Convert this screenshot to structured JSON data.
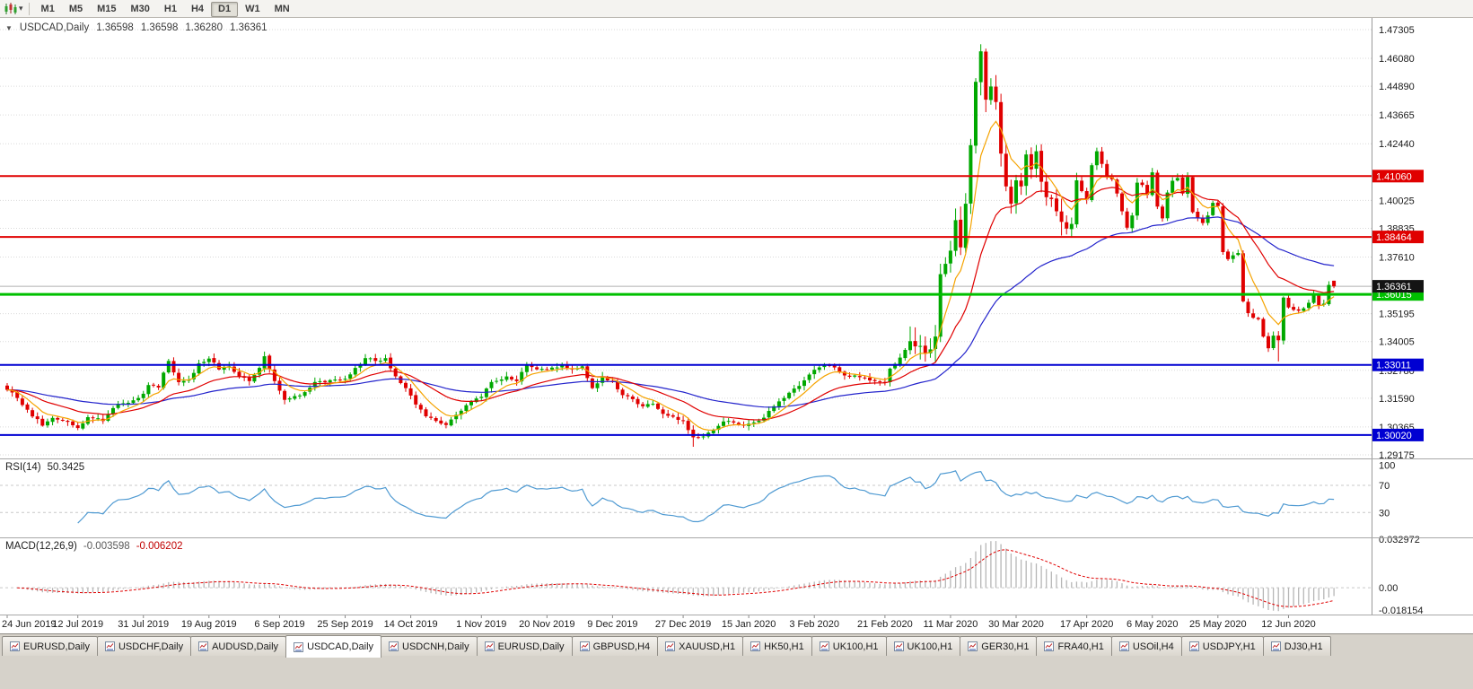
{
  "toolbar": {
    "timeframes": [
      {
        "label": "M1",
        "active": false
      },
      {
        "label": "M5",
        "active": false
      },
      {
        "label": "M15",
        "active": false
      },
      {
        "label": "M30",
        "active": false
      },
      {
        "label": "H1",
        "active": false
      },
      {
        "label": "H4",
        "active": false
      },
      {
        "label": "D1",
        "active": true
      },
      {
        "label": "W1",
        "active": false
      },
      {
        "label": "MN",
        "active": false
      }
    ]
  },
  "chart_header": {
    "collapse_arrow": "▼",
    "symbol": "USDCAD,Daily",
    "open": "1.36598",
    "high": "1.36598",
    "low": "1.36280",
    "close": "1.36361"
  },
  "rsi_panel": {
    "name": "RSI(14)",
    "value": "50.3425",
    "axis_labels": [
      "100",
      "70",
      "30"
    ],
    "levels_dashed": [
      70,
      30
    ],
    "line_color": "#4f9ad2"
  },
  "macd_panel": {
    "name": "MACD(12,26,9)",
    "value_main": "-0.003598",
    "value_signal": "-0.006202",
    "axis_labels": [
      "0.032972",
      "0.00",
      "-0.018154"
    ],
    "scale_max": 0.032972,
    "scale_min": -0.018154,
    "histogram_color": "#b6b6b6",
    "signal_color": "#e00000"
  },
  "chart_data": {
    "type": "candlestick",
    "symbol": "USDCAD",
    "period": "Daily",
    "candle_count": 264,
    "up_color": "#00a800",
    "down_color": "#e00000",
    "y_axis_ticks": [
      "1.47305",
      "1.46080",
      "1.44890",
      "1.43665",
      "1.42440",
      "1.40025",
      "1.38835",
      "1.37610",
      "1.35195",
      "1.34005",
      "1.32780",
      "1.31590",
      "1.30365",
      "1.29175"
    ],
    "x_axis_labels": [
      {
        "i": 0,
        "label": "24 Jun 2019"
      },
      {
        "i": 14,
        "label": "12 Jul 2019"
      },
      {
        "i": 27,
        "label": "31 Jul 2019"
      },
      {
        "i": 40,
        "label": "19 Aug 2019"
      },
      {
        "i": 54,
        "label": "6 Sep 2019"
      },
      {
        "i": 67,
        "label": "25 Sep 2019"
      },
      {
        "i": 80,
        "label": "14 Oct 2019"
      },
      {
        "i": 94,
        "label": "1 Nov 2019"
      },
      {
        "i": 107,
        "label": "20 Nov 2019"
      },
      {
        "i": 120,
        "label": "9 Dec 2019"
      },
      {
        "i": 134,
        "label": "27 Dec 2019"
      },
      {
        "i": 147,
        "label": "15 Jan 2020"
      },
      {
        "i": 160,
        "label": "3 Feb 2020"
      },
      {
        "i": 174,
        "label": "21 Feb 2020"
      },
      {
        "i": 187,
        "label": "11 Mar 2020"
      },
      {
        "i": 200,
        "label": "30 Mar 2020"
      },
      {
        "i": 214,
        "label": "17 Apr 2020"
      },
      {
        "i": 227,
        "label": "6 May 2020"
      },
      {
        "i": 240,
        "label": "25 May 2020"
      },
      {
        "i": 254,
        "label": "12 Jun 2020"
      }
    ],
    "close_anchors": [
      [
        0,
        1.3195
      ],
      [
        2,
        1.316
      ],
      [
        4,
        1.311
      ],
      [
        7,
        1.3042
      ],
      [
        9,
        1.3075
      ],
      [
        12,
        1.3058
      ],
      [
        14,
        1.3032
      ],
      [
        16,
        1.3078
      ],
      [
        19,
        1.3062
      ],
      [
        22,
        1.3135
      ],
      [
        25,
        1.315
      ],
      [
        27,
        1.3178
      ],
      [
        28,
        1.3215
      ],
      [
        30,
        1.3205
      ],
      [
        32,
        1.3318
      ],
      [
        34,
        1.3228
      ],
      [
        36,
        1.3238
      ],
      [
        38,
        1.3308
      ],
      [
        40,
        1.3328
      ],
      [
        42,
        1.3282
      ],
      [
        44,
        1.3295
      ],
      [
        46,
        1.3252
      ],
      [
        48,
        1.3232
      ],
      [
        50,
        1.3288
      ],
      [
        51,
        1.3338
      ],
      [
        53,
        1.3232
      ],
      [
        55,
        1.3152
      ],
      [
        57,
        1.3168
      ],
      [
        59,
        1.3185
      ],
      [
        61,
        1.3228
      ],
      [
        64,
        1.3236
      ],
      [
        67,
        1.3242
      ],
      [
        69,
        1.3288
      ],
      [
        71,
        1.333
      ],
      [
        73,
        1.3318
      ],
      [
        75,
        1.333
      ],
      [
        77,
        1.3252
      ],
      [
        79,
        1.3202
      ],
      [
        81,
        1.3132
      ],
      [
        83,
        1.3082
      ],
      [
        85,
        1.3062
      ],
      [
        87,
        1.3045
      ],
      [
        89,
        1.3088
      ],
      [
        92,
        1.3145
      ],
      [
        94,
        1.3165
      ],
      [
        96,
        1.3228
      ],
      [
        99,
        1.3252
      ],
      [
        101,
        1.3232
      ],
      [
        103,
        1.3302
      ],
      [
        105,
        1.3282
      ],
      [
        107,
        1.3282
      ],
      [
        110,
        1.3298
      ],
      [
        112,
        1.3282
      ],
      [
        114,
        1.3295
      ],
      [
        116,
        1.3202
      ],
      [
        118,
        1.3252
      ],
      [
        120,
        1.3228
      ],
      [
        122,
        1.3172
      ],
      [
        124,
        1.3155
      ],
      [
        126,
        1.3125
      ],
      [
        128,
        1.3135
      ],
      [
        130,
        1.3092
      ],
      [
        132,
        1.308
      ],
      [
        134,
        1.3065
      ],
      [
        136,
        1.2992
      ],
      [
        138,
        1.2996
      ],
      [
        140,
        1.3022
      ],
      [
        142,
        1.306
      ],
      [
        144,
        1.3055
      ],
      [
        146,
        1.3042
      ],
      [
        148,
        1.3056
      ],
      [
        150,
        1.3076
      ],
      [
        152,
        1.3125
      ],
      [
        154,
        1.316
      ],
      [
        156,
        1.32
      ],
      [
        158,
        1.3235
      ],
      [
        160,
        1.328
      ],
      [
        162,
        1.3298
      ],
      [
        164,
        1.329
      ],
      [
        166,
        1.3256
      ],
      [
        168,
        1.3256
      ],
      [
        170,
        1.3246
      ],
      [
        172,
        1.3232
      ],
      [
        174,
        1.3225
      ],
      [
        175,
        1.3285
      ],
      [
        177,
        1.3332
      ],
      [
        179,
        1.3402
      ],
      [
        181,
        1.3382
      ],
      [
        182,
        1.3348
      ],
      [
        184,
        1.3422
      ],
      [
        185,
        1.3688
      ],
      [
        186,
        1.3732
      ],
      [
        187,
        1.3788
      ],
      [
        188,
        1.3918
      ],
      [
        189,
        1.3802
      ],
      [
        190,
        1.3988
      ],
      [
        191,
        1.4238
      ],
      [
        192,
        1.4508
      ],
      [
        193,
        1.4638
      ],
      [
        194,
        1.4432
      ],
      [
        195,
        1.4488
      ],
      [
        196,
        1.4422
      ],
      [
        197,
        1.4202
      ],
      [
        198,
        1.4062
      ],
      [
        199,
        1.3988
      ],
      [
        200,
        1.4088
      ],
      [
        201,
        1.4062
      ],
      [
        202,
        1.4198
      ],
      [
        203,
        1.4135
      ],
      [
        204,
        1.4212
      ],
      [
        205,
        1.4082
      ],
      [
        206,
        1.4016
      ],
      [
        207,
        1.4008
      ],
      [
        208,
        1.3956
      ],
      [
        210,
        1.3882
      ],
      [
        211,
        1.3902
      ],
      [
        212,
        1.4088
      ],
      [
        213,
        1.4042
      ],
      [
        214,
        1.4006
      ],
      [
        215,
        1.4152
      ],
      [
        216,
        1.4212
      ],
      [
        217,
        1.4158
      ],
      [
        218,
        1.4102
      ],
      [
        219,
        1.4092
      ],
      [
        220,
        1.4032
      ],
      [
        221,
        1.3956
      ],
      [
        222,
        1.3886
      ],
      [
        223,
        1.3938
      ],
      [
        224,
        1.4078
      ],
      [
        225,
        1.4068
      ],
      [
        226,
        1.4026
      ],
      [
        227,
        1.4122
      ],
      [
        228,
        1.3976
      ],
      [
        229,
        1.3926
      ],
      [
        230,
        1.4036
      ],
      [
        231,
        1.4086
      ],
      [
        232,
        1.4098
      ],
      [
        233,
        1.4032
      ],
      [
        234,
        1.4102
      ],
      [
        235,
        1.3952
      ],
      [
        236,
        1.3926
      ],
      [
        237,
        1.3906
      ],
      [
        238,
        1.3938
      ],
      [
        239,
        1.3992
      ],
      [
        240,
        1.3978
      ],
      [
        241,
        1.3782
      ],
      [
        242,
        1.3752
      ],
      [
        243,
        1.3768
      ],
      [
        244,
        1.3778
      ],
      [
        245,
        1.3572
      ],
      [
        246,
        1.3522
      ],
      [
        247,
        1.3502
      ],
      [
        248,
        1.3496
      ],
      [
        249,
        1.3422
      ],
      [
        250,
        1.3372
      ],
      [
        251,
        1.3426
      ],
      [
        252,
        1.3406
      ],
      [
        253,
        1.3588
      ],
      [
        254,
        1.3546
      ],
      [
        255,
        1.3536
      ],
      [
        256,
        1.3532
      ],
      [
        257,
        1.3542
      ],
      [
        258,
        1.3566
      ],
      [
        259,
        1.3602
      ],
      [
        260,
        1.3556
      ],
      [
        261,
        1.3562
      ],
      [
        262,
        1.3642
      ],
      [
        263,
        1.36361
      ]
    ],
    "last_candle": {
      "o": 1.36598,
      "h": 1.36598,
      "l": 1.3628,
      "c": 1.36361
    },
    "overrides": [
      {
        "i": 193,
        "high": 1.4668
      },
      {
        "i": 136,
        "low": 1.2952
      },
      {
        "i": 179,
        "high": 1.3465
      },
      {
        "i": 252,
        "low": 1.3316
      }
    ],
    "volatile_range": [
      180,
      212
    ],
    "horizontal_lines": [
      {
        "price": 1.4106,
        "label": "1.41060",
        "color": "#e00000",
        "width": 2
      },
      {
        "price": 1.38464,
        "label": "1.38464",
        "color": "#e00000",
        "width": 2
      },
      {
        "price": 1.36015,
        "label": "1.36015",
        "color": "#00c000",
        "width": 3
      },
      {
        "price": 1.33011,
        "label": "1.33011",
        "color": "#0000d2",
        "width": 2
      },
      {
        "price": 1.3002,
        "label": "1.30020",
        "color": "#0000d2",
        "width": 2
      }
    ],
    "current_price": {
      "value": 1.36361,
      "label": "1.36361",
      "badge_color": "#141414",
      "line_color": "#b0b0b0"
    },
    "moving_averages": [
      {
        "period": 7,
        "color": "#f5a300"
      },
      {
        "period": 21,
        "color": "#e00000"
      },
      {
        "period": 55,
        "color": "#2424cc"
      }
    ],
    "rsi_period": 14,
    "macd_params": {
      "fast": 12,
      "slow": 26,
      "signal": 9
    }
  },
  "tabs": {
    "items": [
      {
        "label": "EURUSD,Daily",
        "active": false
      },
      {
        "label": "USDCHF,Daily",
        "active": false
      },
      {
        "label": "AUDUSD,Daily",
        "active": false
      },
      {
        "label": "USDCAD,Daily",
        "active": true
      },
      {
        "label": "USDCNH,Daily",
        "active": false
      },
      {
        "label": "EURUSD,Daily",
        "active": false
      },
      {
        "label": "GBPUSD,H4",
        "active": false
      },
      {
        "label": "XAUUSD,H1",
        "active": false
      },
      {
        "label": "HK50,H1",
        "active": false
      },
      {
        "label": "UK100,H1",
        "active": false
      },
      {
        "label": "UK100,H1",
        "active": false
      },
      {
        "label": "GER30,H1",
        "active": false
      },
      {
        "label": "FRA40,H1",
        "active": false
      },
      {
        "label": "USOil,H4",
        "active": false
      },
      {
        "label": "USDJPY,H1",
        "active": false
      },
      {
        "label": "DJ30,H1",
        "active": false
      }
    ]
  }
}
